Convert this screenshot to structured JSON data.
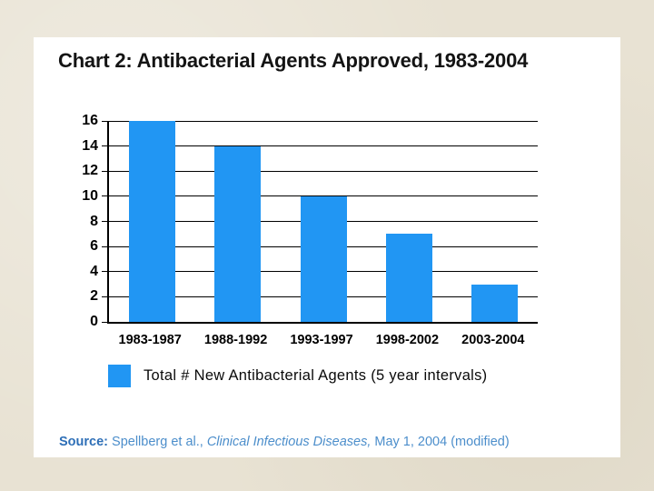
{
  "page": {
    "background_color": "#e8e2d3",
    "panel_color": "#ffffff"
  },
  "chart_data": {
    "type": "bar",
    "title": "Chart 2: Antibacterial Agents Approved, 1983-2004",
    "categories": [
      "1983-1987",
      "1988-1992",
      "1993-1997",
      "1998-2002",
      "2003-2004"
    ],
    "values": [
      16,
      14,
      10,
      7,
      3
    ],
    "xlabel": "",
    "ylabel": "",
    "ylim": [
      0,
      16
    ],
    "yticks": [
      0,
      2,
      4,
      6,
      8,
      10,
      12,
      14,
      16
    ],
    "grid": true,
    "gridline_color": "#000000",
    "axis_color": "#000000",
    "bar_color": "#2196f3",
    "legend": {
      "label": "Total # New Antibacterial Agents (5 year intervals)",
      "swatch_color": "#2196f3",
      "position": "bottom-left"
    }
  },
  "source": {
    "prefix": "Source:",
    "before_italic": " Spellberg et al., ",
    "italic": "Clinical Infectious Diseases,",
    "after_italic": " May 1, 2004 (modified)",
    "prefix_color": "#2e6fb7",
    "text_color": "#4c8ecb"
  }
}
